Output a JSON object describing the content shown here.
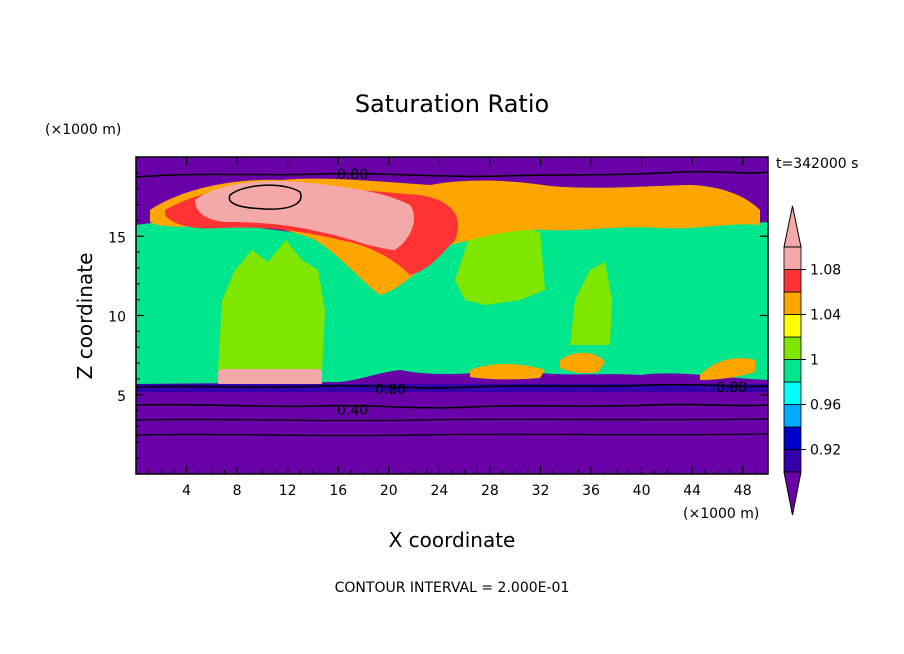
{
  "chart_data": {
    "type": "heatmap",
    "title": "Saturation Ratio",
    "xlabel": "X coordinate",
    "ylabel": "Z coordinate",
    "x_unit": "(×1000 m)",
    "y_unit": "(×1000 m)",
    "time_label": "t=342000 s",
    "xlim": [
      0,
      50
    ],
    "ylim": [
      0,
      20
    ],
    "x_ticks": [
      4,
      8,
      12,
      16,
      20,
      24,
      28,
      32,
      36,
      40,
      44,
      48
    ],
    "y_ticks": [
      5,
      10,
      15
    ],
    "colorbar": {
      "levels": [
        0.9,
        0.92,
        0.94,
        0.96,
        0.98,
        1.0,
        1.02,
        1.04,
        1.06,
        1.08,
        1.1
      ],
      "labels": [
        "0.92",
        "0.96",
        "1",
        "1.04",
        "1.08"
      ],
      "label_values": [
        0.92,
        0.96,
        1.0,
        1.04,
        1.08
      ],
      "colors": [
        "#6a00a8",
        "#3300aa",
        "#0000cc",
        "#00aaff",
        "#00ffff",
        "#00e68c",
        "#7fe600",
        "#ffff00",
        "#ffa500",
        "#ff3333",
        "#f4a9a9"
      ]
    },
    "contour_labels": [
      "0.80",
      "0.80",
      "0.80",
      "0.40"
    ],
    "contour_interval": "CONTOUR INTERVAL = 2.000E-01"
  }
}
